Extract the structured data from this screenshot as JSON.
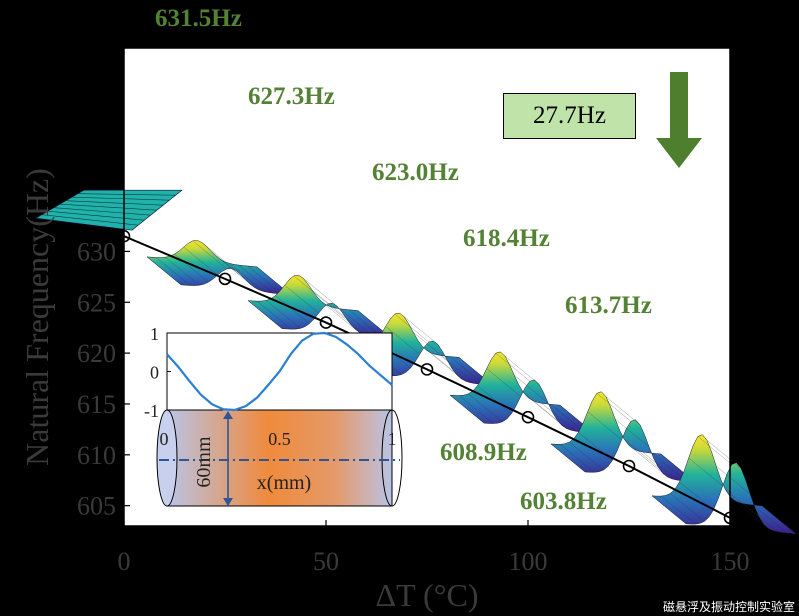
{
  "chart_data": {
    "type": "line",
    "xlabel": "ΔT (°C)",
    "ylabel": "Natural Frequency(Hz)",
    "xlim": [
      0,
      150
    ],
    "ylim": [
      603,
      650
    ],
    "xticks": [
      "0",
      "50",
      "100",
      "150"
    ],
    "yticks": [
      "605",
      "610",
      "615",
      "620",
      "625",
      "630"
    ],
    "x": [
      0,
      25,
      50,
      75,
      100,
      125,
      150
    ],
    "y": [
      631.5,
      627.3,
      623.0,
      618.4,
      613.7,
      608.9,
      603.8
    ],
    "point_labels": [
      "631.5Hz",
      "627.3Hz",
      "623.0Hz",
      "618.4Hz",
      "613.7Hz",
      "608.9Hz",
      "603.8Hz"
    ],
    "annotation": {
      "text": "27.7Hz",
      "color": "#bfe3a8"
    },
    "line_color": "#000000",
    "label_color": "#548235",
    "arrow_color": "#4e7f2e",
    "inset": {
      "type": "line",
      "xlim": [
        0,
        1
      ],
      "ylim": [
        -1,
        1
      ],
      "xticks": [
        "0",
        "0.5",
        "1"
      ],
      "yticks": [
        "1",
        "0",
        "-1"
      ],
      "x": [
        0,
        0.05,
        0.1,
        0.15,
        0.2,
        0.25,
        0.3,
        0.35,
        0.4,
        0.45,
        0.5,
        0.55,
        0.6,
        0.65,
        0.7,
        0.75,
        0.8,
        0.85,
        0.9,
        0.95,
        1.0
      ],
      "y": [
        0.45,
        0.12,
        -0.25,
        -0.6,
        -0.85,
        -0.98,
        -1.0,
        -0.9,
        -0.68,
        -0.35,
        0.0,
        0.45,
        0.8,
        0.98,
        1.0,
        0.9,
        0.7,
        0.45,
        0.15,
        -0.1,
        -0.35
      ],
      "line_color": "#2a7fd4",
      "cylinder_labels": {
        "diameter": "60mm",
        "axis": "x(mm)"
      }
    }
  },
  "watermark": "磁悬浮及振动控制实验室"
}
